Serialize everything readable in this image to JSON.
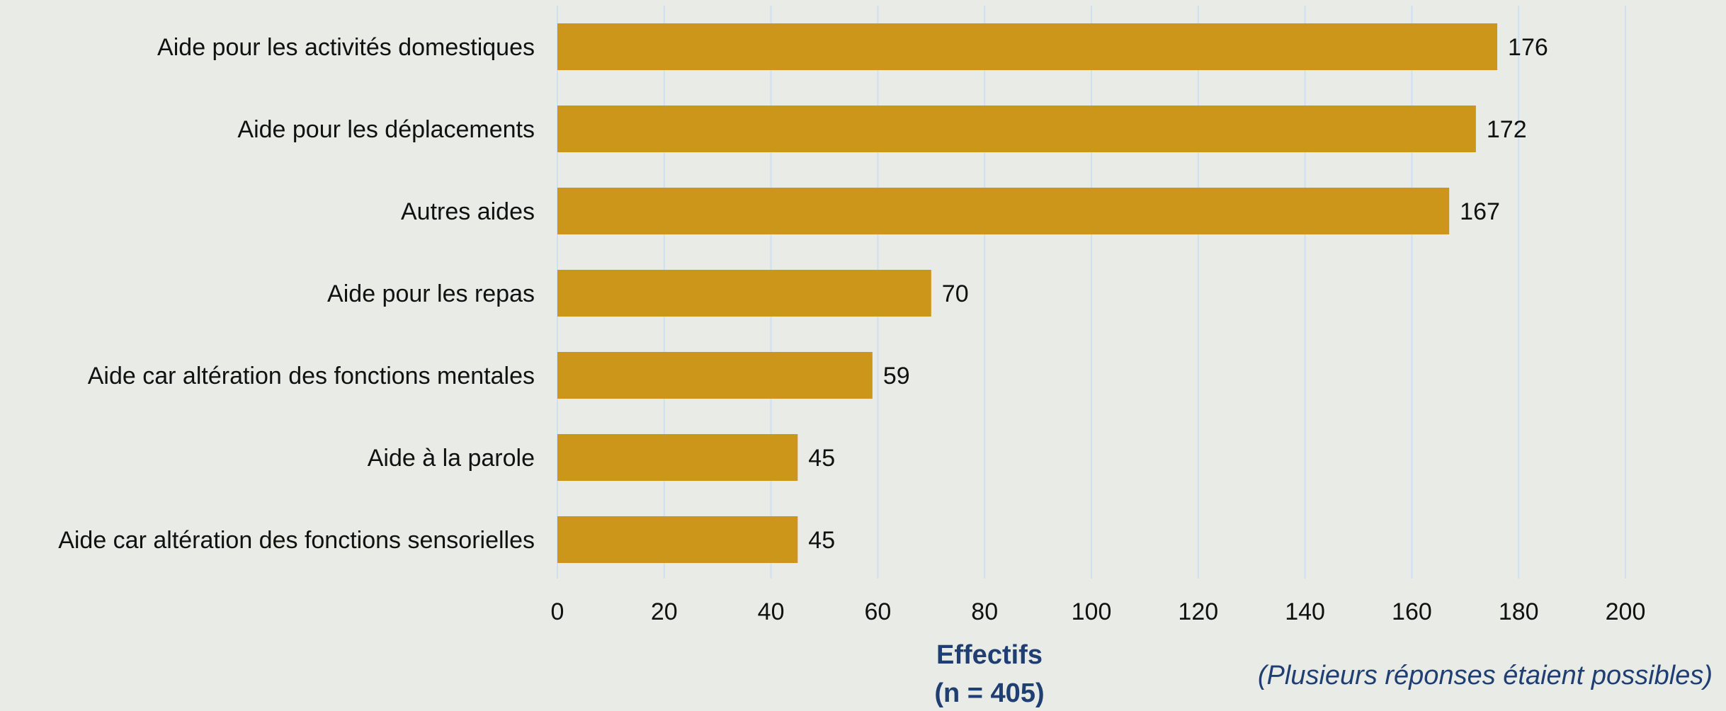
{
  "chart_data": {
    "type": "bar",
    "orientation": "horizontal",
    "categories": [
      "Aide pour les activités domestiques",
      "Aide pour les déplacements",
      "Autres aides",
      "Aide pour les repas",
      "Aide car altération des fonctions mentales",
      "Aide à la parole",
      "Aide car altération des fonctions sensorielles"
    ],
    "values": [
      176,
      172,
      167,
      70,
      59,
      45,
      45
    ],
    "data_labels": [
      "176",
      "172",
      "167",
      "70",
      "59",
      "45",
      "45"
    ],
    "xlim": [
      0,
      200
    ],
    "xticks": [
      0,
      20,
      40,
      60,
      80,
      100,
      120,
      140,
      160,
      180,
      200
    ],
    "xtick_labels": [
      "0",
      "20",
      "40",
      "60",
      "80",
      "100",
      "120",
      "140",
      "160",
      "180",
      "200"
    ],
    "xlabel_line1": "Effectifs",
    "xlabel_line2": "(n = 405)",
    "note": "(Plusieurs réponses étaient possibles)",
    "grid": "vertical",
    "legend": "none",
    "colors": {
      "bar": "#cc961b",
      "grid": "#cfe0f2",
      "background": "#e9ebe7",
      "accent_text": "#1f3f73",
      "text": "#111111"
    }
  }
}
